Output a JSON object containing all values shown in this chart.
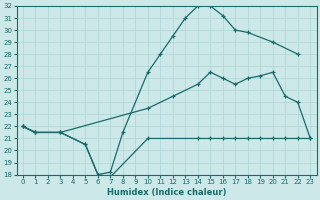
{
  "xlabel": "Humidex (Indice chaleur)",
  "bg_color": "#cce8e8",
  "grid_color": "#aad4d4",
  "line_color": "#1a6b6b",
  "xlim": [
    -0.5,
    23.5
  ],
  "ylim": [
    18,
    32
  ],
  "xticks": [
    0,
    1,
    2,
    3,
    4,
    5,
    6,
    7,
    8,
    9,
    10,
    11,
    12,
    13,
    14,
    15,
    16,
    17,
    18,
    19,
    20,
    21,
    22,
    23
  ],
  "yticks": [
    18,
    19,
    20,
    21,
    22,
    23,
    24,
    25,
    26,
    27,
    28,
    29,
    30,
    31,
    32
  ],
  "line1_x": [
    0,
    1,
    3,
    5,
    6,
    7,
    8,
    10,
    11,
    12,
    13,
    14,
    15,
    16,
    17,
    18,
    20,
    22
  ],
  "line1_y": [
    22,
    21.5,
    21.5,
    20.5,
    18,
    18.2,
    21.5,
    26.5,
    28,
    29.5,
    31,
    32,
    32,
    31.2,
    30,
    29.8,
    29,
    28
  ],
  "line2_x": [
    0,
    1,
    3,
    5,
    6,
    7,
    10,
    14,
    15,
    16,
    17,
    18,
    19,
    20,
    21,
    22,
    23
  ],
  "line2_y": [
    22,
    21.5,
    21.5,
    20.5,
    18,
    17.8,
    21.0,
    21,
    21,
    21,
    21,
    21,
    21,
    21,
    21,
    21,
    21
  ],
  "line3_x": [
    0,
    1,
    3,
    10,
    12,
    14,
    15,
    16,
    17,
    18,
    19,
    20,
    21,
    22,
    23
  ],
  "line3_y": [
    22,
    21.5,
    21.5,
    23.5,
    24.5,
    25.5,
    26.5,
    26,
    25.5,
    26,
    26.2,
    26.5,
    24.5,
    24,
    21
  ]
}
